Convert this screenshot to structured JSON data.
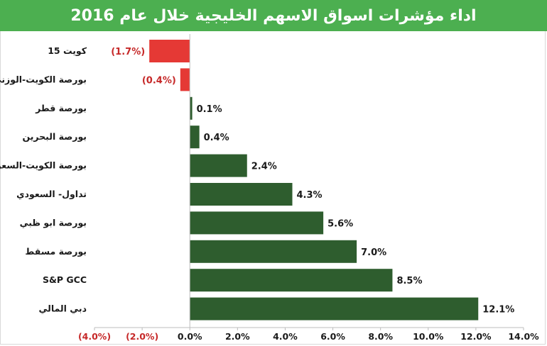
{
  "chart_data": {
    "type": "bar",
    "orientation": "horizontal",
    "title": "اداء مؤشرات اسواق الاسهم الخليجية خلال عام 2016",
    "categories": [
      "كويت 15",
      "بورصة الكويت-الوزني",
      "بورصة قطر",
      "بورصة البحرين",
      "بورصة الكويت-السعري",
      "تداول- السعودي",
      "بورصة ابو ظبي",
      "بورصة مسقط",
      "S&P GCC",
      "دبي المالي"
    ],
    "values": [
      -1.7,
      -0.4,
      0.1,
      0.4,
      2.4,
      4.3,
      5.6,
      7.0,
      8.5,
      12.1
    ],
    "value_labels": [
      "(1.7%)",
      "(0.4%)",
      "0.1%",
      "0.4%",
      "2.4%",
      "4.3%",
      "5.6%",
      "7.0%",
      "8.5%",
      "12.1%"
    ],
    "x_ticks": [
      -4,
      -2,
      0,
      2,
      4,
      6,
      8,
      10,
      12,
      14
    ],
    "x_tick_labels": [
      "(4.0%)",
      "(2.0%)",
      "0.0%",
      "2.0%",
      "4.0%",
      "6.0%",
      "8.0%",
      "10.0%",
      "12.0%",
      "14.0%"
    ],
    "xlim": [
      -4,
      14
    ],
    "grid": false,
    "legend": "none",
    "xlabel": "",
    "ylabel": ""
  },
  "colors": {
    "positive": "#2e5d2e",
    "negative": "#e53935",
    "negative_text": "#c62828",
    "title_bg": "#4caf50"
  }
}
